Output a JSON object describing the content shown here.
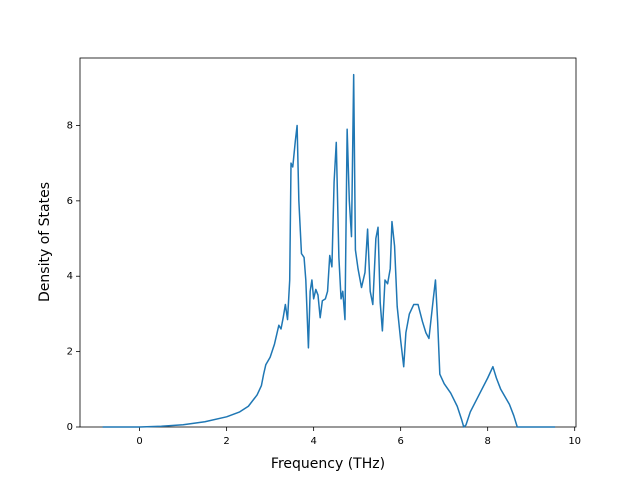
{
  "chart_data": {
    "type": "line",
    "xlabel": "Frequency (THz)",
    "ylabel": "Density of States",
    "x": [
      -0.85,
      0,
      0.5,
      1,
      1.5,
      2,
      2.3,
      2.5,
      2.7,
      2.8,
      2.85,
      2.9,
      3.0,
      3.1,
      3.15,
      3.2,
      3.25,
      3.3,
      3.35,
      3.4,
      3.45,
      3.48,
      3.52,
      3.58,
      3.62,
      3.66,
      3.72,
      3.78,
      3.82,
      3.88,
      3.92,
      3.96,
      4.0,
      4.05,
      4.1,
      4.15,
      4.2,
      4.27,
      4.32,
      4.37,
      4.42,
      4.47,
      4.52,
      4.58,
      4.63,
      4.67,
      4.72,
      4.77,
      4.82,
      4.87,
      4.92,
      4.96,
      5.02,
      5.1,
      5.18,
      5.24,
      5.3,
      5.36,
      5.43,
      5.48,
      5.53,
      5.58,
      5.64,
      5.7,
      5.76,
      5.8,
      5.86,
      5.92,
      6.0,
      6.07,
      6.12,
      6.2,
      6.3,
      6.4,
      6.5,
      6.58,
      6.65,
      6.75,
      6.8,
      6.85,
      6.9,
      7.0,
      7.15,
      7.3,
      7.4,
      7.45,
      7.5,
      7.6,
      7.8,
      8.0,
      8.12,
      8.2,
      8.3,
      8.5,
      8.6,
      8.68,
      9.0,
      9.55
    ],
    "series": [
      {
        "color": "#1f77b4",
        "values": [
          0,
          0,
          0.02,
          0.06,
          0.14,
          0.27,
          0.4,
          0.55,
          0.85,
          1.1,
          1.4,
          1.65,
          1.85,
          2.2,
          2.45,
          2.7,
          2.6,
          2.9,
          3.25,
          2.85,
          3.9,
          7.0,
          6.9,
          7.6,
          8.0,
          6.0,
          4.6,
          4.5,
          3.9,
          2.1,
          3.6,
          3.9,
          3.4,
          3.65,
          3.5,
          2.9,
          3.35,
          3.4,
          3.6,
          4.55,
          4.25,
          6.5,
          7.55,
          4.5,
          3.4,
          3.6,
          2.85,
          7.9,
          6.0,
          5.05,
          9.35,
          4.7,
          4.2,
          3.7,
          4.1,
          5.25,
          3.6,
          3.25,
          5.0,
          5.3,
          3.3,
          2.55,
          3.9,
          3.8,
          4.2,
          5.45,
          4.8,
          3.2,
          2.3,
          1.6,
          2.5,
          3.0,
          3.25,
          3.25,
          2.8,
          2.5,
          2.35,
          3.4,
          3.9,
          2.8,
          1.4,
          1.15,
          0.9,
          0.55,
          0.2,
          0,
          0.05,
          0.4,
          0.85,
          1.3,
          1.6,
          1.3,
          1.0,
          0.6,
          0.3,
          0,
          0,
          0
        ]
      }
    ],
    "xlim": [
      -1.37,
      10.03
    ],
    "ylim": [
      0,
      9.79
    ],
    "xticks": [
      0,
      2,
      4,
      6,
      8,
      10
    ],
    "yticks": [
      0,
      2,
      4,
      6,
      8
    ]
  }
}
